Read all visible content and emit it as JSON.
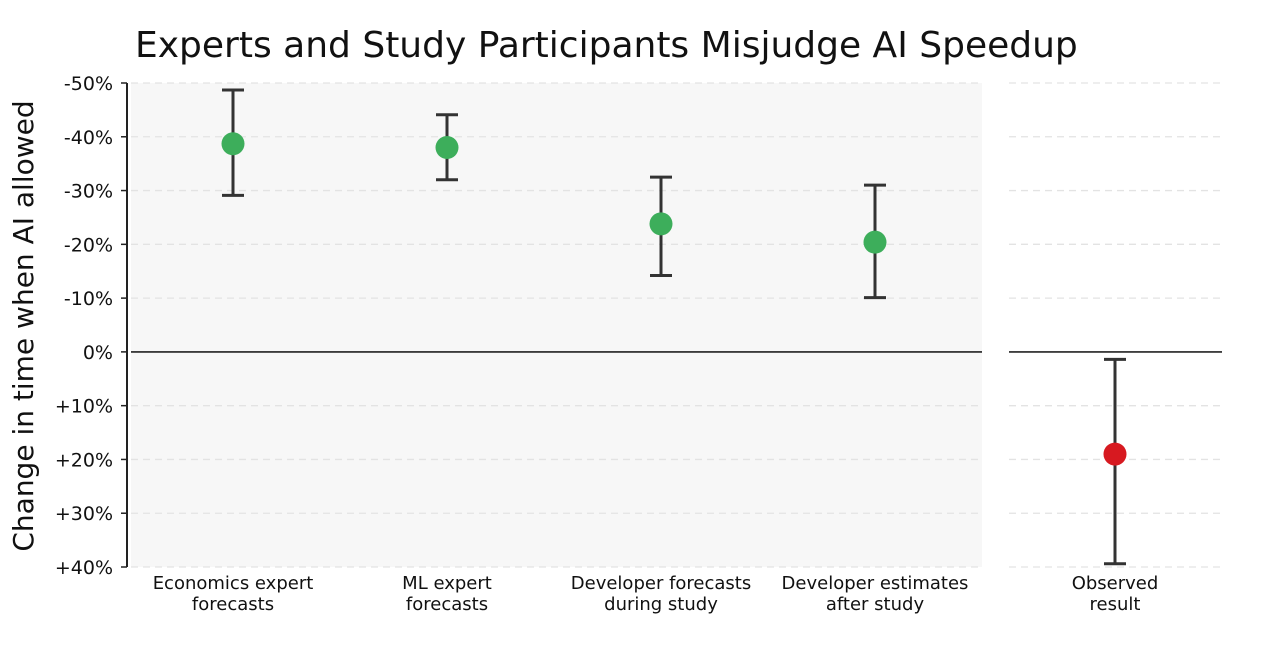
{
  "chart_data": {
    "type": "errorbar",
    "title": "Experts and Study Participants Misjudge AI Speedup",
    "ylabel": "Change in time when AI allowed",
    "xlabel": "",
    "ylim": [
      -50,
      40
    ],
    "yticks": [
      -50,
      -40,
      -30,
      -20,
      -10,
      0,
      10,
      20,
      30,
      40
    ],
    "ytick_labels": [
      "-50%",
      "-40%",
      "-30%",
      "-20%",
      "-10%",
      "0%",
      "+10%",
      "+20%",
      "+30%",
      "+40%"
    ],
    "grid": true,
    "panels": [
      {
        "name": "forecasts",
        "shaded": true,
        "points": [
          {
            "label": [
              "Economics expert",
              "forecasts"
            ],
            "value": -38.7,
            "low": -48.7,
            "high": -29.1,
            "color": "#3dae5b"
          },
          {
            "label": [
              "ML expert",
              "forecasts"
            ],
            "value": -38.0,
            "low": -44.1,
            "high": -32.0,
            "color": "#3dae5b"
          },
          {
            "label": [
              "Developer forecasts",
              "during study"
            ],
            "value": -23.8,
            "low": -32.5,
            "high": -14.2,
            "color": "#3dae5b"
          },
          {
            "label": [
              "Developer estimates",
              "after study"
            ],
            "value": -20.4,
            "low": -31.0,
            "high": -10.1,
            "color": "#3dae5b"
          }
        ]
      },
      {
        "name": "observed",
        "shaded": false,
        "points": [
          {
            "label": [
              "Observed",
              "result"
            ],
            "value": 19.0,
            "low": 1.4,
            "high": 39.4,
            "color": "#d71920"
          }
        ]
      }
    ]
  }
}
